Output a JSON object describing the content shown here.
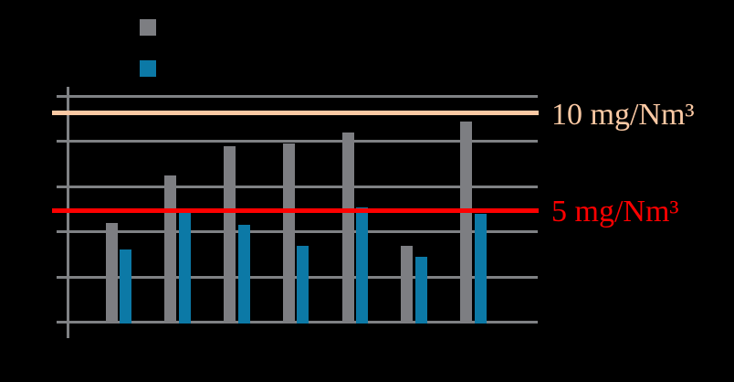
{
  "colors": {
    "background": "#000000",
    "bar_gray": "#7D7E82",
    "bar_teal": "#0C79A6",
    "grid": "#7F8184",
    "ref_salmon": "#FBC9A4",
    "ref_red": "#FF0000"
  },
  "legend": {
    "swatches": [
      {
        "name": "gray",
        "color_key": "bar_gray"
      },
      {
        "name": "teal",
        "color_key": "bar_teal"
      }
    ]
  },
  "chart_data": {
    "type": "bar",
    "n_groups": 7,
    "categories": [
      "",
      "",
      "",
      "",
      "",
      "",
      ""
    ],
    "series": [
      {
        "name": "gray",
        "color_key": "bar_gray",
        "values": [
          4.4,
          6.5,
          7.8,
          7.9,
          8.4,
          3.4,
          8.9
        ]
      },
      {
        "name": "teal",
        "color_key": "bar_teal",
        "values": [
          3.2,
          4.9,
          4.3,
          3.4,
          5.1,
          2.9,
          4.8
        ]
      }
    ],
    "ylim": [
      0,
      10
    ],
    "gridline_step": 2,
    "grid_on": true,
    "legend_position": "top-left",
    "ref_lines": [
      {
        "label": "10 mg/Nm³",
        "value": 10,
        "drawn_at": 9.27,
        "color_key": "ref_salmon"
      },
      {
        "label": "5 mg/Nm³",
        "value": 5,
        "drawn_at": 4.94,
        "color_key": "ref_red"
      }
    ]
  }
}
